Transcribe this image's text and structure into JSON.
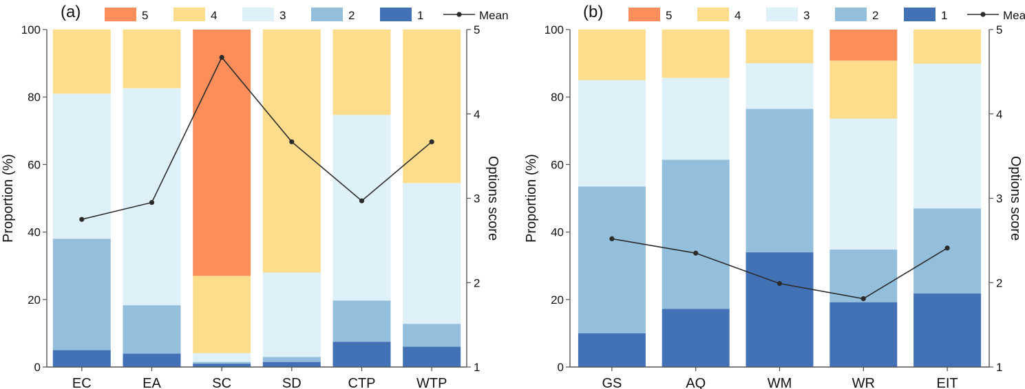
{
  "colors": {
    "level_1": "#4272b5",
    "level_2": "#93bedc",
    "level_3": "#def0f8",
    "level_4": "#fddc8c",
    "level_5": "#fb8e5a",
    "mean_line": "#2b2b2b"
  },
  "legend": {
    "labels": [
      "5",
      "4",
      "3",
      "2",
      "1"
    ],
    "mean_label": "Mean"
  },
  "chart_data": [
    {
      "type": "bar",
      "stacked": true,
      "panel_label": "(a)",
      "categories": [
        "EC",
        "EA",
        "SC",
        "SD",
        "CTP",
        "WTP"
      ],
      "series": [
        {
          "name": "1",
          "values": [
            5,
            4,
            1,
            1.5,
            7.5,
            6
          ]
        },
        {
          "name": "2",
          "values": [
            33,
            14.3,
            0.5,
            1.5,
            12.2,
            6.8
          ]
        },
        {
          "name": "3",
          "values": [
            43,
            64.3,
            2.6,
            25,
            55,
            41.7
          ]
        },
        {
          "name": "4",
          "values": [
            19,
            17.4,
            22.9,
            72,
            25.3,
            45.5
          ]
        },
        {
          "name": "5",
          "values": [
            0,
            0,
            73,
            0,
            0,
            0
          ]
        }
      ],
      "mean": [
        2.75,
        2.95,
        4.67,
        3.67,
        2.97,
        3.67
      ],
      "ylabel": "Proportion (%)",
      "y2label": "Options score",
      "ylim": [
        0,
        100
      ],
      "yticks": [
        "0",
        "20",
        "40",
        "60",
        "80",
        "100"
      ],
      "y2lim": [
        1,
        5
      ],
      "y2ticks": [
        "1",
        "2",
        "3",
        "4",
        "5"
      ]
    },
    {
      "type": "bar",
      "stacked": true,
      "panel_label": "(b)",
      "categories": [
        "GS",
        "AQ",
        "WM",
        "WR",
        "EIT"
      ],
      "series": [
        {
          "name": "1",
          "values": [
            10,
            17.2,
            34,
            19.2,
            21.8
          ]
        },
        {
          "name": "2",
          "values": [
            43.5,
            44.2,
            42.5,
            15.6,
            25.2
          ]
        },
        {
          "name": "3",
          "values": [
            31.5,
            24.3,
            13.5,
            38.8,
            42.9
          ]
        },
        {
          "name": "4",
          "values": [
            15,
            14.3,
            10,
            17.2,
            10.1
          ]
        },
        {
          "name": "5",
          "values": [
            0,
            0,
            0,
            9.2,
            0
          ]
        }
      ],
      "mean": [
        2.52,
        2.35,
        1.99,
        1.81,
        2.41
      ],
      "ylabel": "Proportion (%)",
      "y2label": "Options score",
      "ylim": [
        0,
        100
      ],
      "yticks": [
        "0",
        "20",
        "40",
        "60",
        "80",
        "100"
      ],
      "y2lim": [
        1,
        5
      ],
      "y2ticks": [
        "1",
        "2",
        "3",
        "4",
        "5"
      ]
    }
  ]
}
